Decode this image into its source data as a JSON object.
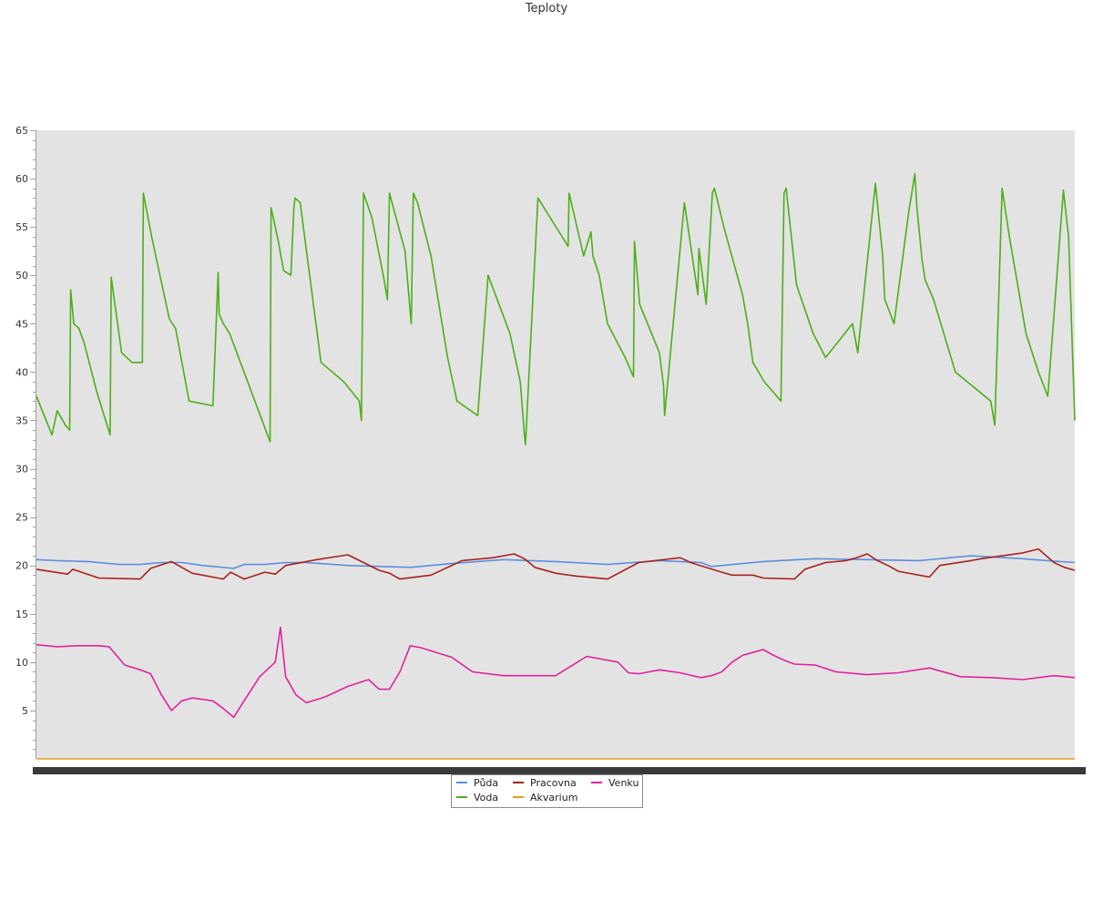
{
  "chart_data": {
    "type": "line",
    "title": "Teploty",
    "xlabel": "",
    "ylabel": "",
    "ylim": [
      0,
      65
    ],
    "yticks": [
      5,
      10,
      15,
      20,
      25,
      30,
      35,
      40,
      45,
      50,
      55,
      60,
      65
    ],
    "grid": false,
    "legend_position": "bottom-center",
    "series": [
      {
        "name": "Půda",
        "color": "#5b8ee0",
        "x": [
          0,
          2,
          5,
          8,
          10,
          12,
          14,
          16,
          19,
          20,
          22,
          24,
          26,
          30,
          36,
          40,
          45,
          50,
          55,
          60,
          64,
          65,
          70,
          75,
          80,
          85,
          90,
          95,
          96,
          100
        ],
        "values": [
          20.6,
          20.5,
          20.4,
          20.1,
          20.1,
          20.3,
          20.3,
          20.0,
          19.7,
          20.1,
          20.1,
          20.3,
          20.3,
          20.0,
          19.8,
          20.2,
          20.6,
          20.4,
          20.1,
          20.5,
          20.3,
          19.9,
          20.4,
          20.7,
          20.6,
          20.5,
          21.0,
          20.7,
          20.6,
          20.3
        ]
      },
      {
        "name": "Voda",
        "color": "#4caf17",
        "x": [
          0,
          1.5,
          2,
          2.8,
          3.2,
          3.3,
          3.6,
          4.1,
          4.6,
          5.8,
          7.1,
          7.2,
          8.2,
          9.2,
          10.2,
          10.3,
          11.1,
          12.8,
          13.4,
          14.7,
          17.0,
          17.5,
          17.6,
          18.0,
          18.6,
          19.3,
          22.5,
          22.6,
          23.0,
          23.3,
          23.8,
          24.5,
          24.8,
          24.9,
          25.4,
          27.4,
          29.6,
          31.1,
          31.3,
          31.5,
          32.3,
          33.4,
          33.8,
          34.0,
          35.5,
          36.1,
          36.3,
          36.7,
          38.0,
          39.6,
          40.5,
          42.5,
          43.5,
          45.6,
          46.6,
          47.0,
          47.1,
          48.3,
          51.2,
          51.3,
          52.7,
          53.4,
          53.6,
          54.2,
          55.0,
          56.7,
          57.5,
          57.6,
          58.1,
          60.0,
          60.4,
          60.5,
          62.4,
          63.7,
          63.8,
          64.5,
          65.1,
          65.3,
          66.2,
          68.0,
          68.5,
          69.0,
          70.1,
          71.7,
          72.0,
          72.2,
          73.2,
          74.8,
          76.0,
          78.6,
          79.1,
          80.8,
          81.5,
          81.7,
          82.6,
          84.0,
          84.6,
          84.8,
          85.3,
          85.6,
          86.4,
          88.5,
          91.9,
          92.3,
          93.0,
          93.7,
          94.5,
          95.3,
          96.5,
          97.4,
          98.9,
          99.4,
          100
        ],
        "values": [
          37.5,
          33.5,
          36.0,
          34.5,
          34.0,
          48.5,
          45.0,
          44.5,
          43.0,
          38.0,
          33.5,
          49.8,
          42.0,
          41.0,
          41.0,
          58.5,
          54.0,
          45.5,
          44.5,
          37.0,
          36.5,
          50.3,
          46.0,
          45.0,
          44.0,
          42.0,
          32.8,
          57.0,
          55.0,
          53.5,
          50.5,
          50.0,
          57.0,
          58.0,
          57.5,
          41.0,
          39.0,
          37.0,
          35.0,
          58.5,
          56.0,
          50.0,
          47.5,
          58.5,
          52.5,
          45.0,
          58.5,
          57.5,
          52.0,
          41.5,
          37.0,
          35.5,
          50.0,
          44.0,
          39.0,
          33.5,
          32.5,
          58.0,
          53.0,
          58.5,
          52.0,
          54.5,
          52.0,
          50.0,
          45.0,
          41.5,
          39.5,
          53.5,
          47.0,
          42.0,
          38.5,
          35.5,
          57.5,
          48.0,
          52.8,
          47.0,
          58.5,
          59.0,
          55.0,
          48.0,
          45.0,
          41.0,
          39.0,
          37.0,
          58.5,
          59.0,
          49.0,
          44.0,
          41.5,
          45.0,
          42.0,
          59.5,
          52.0,
          47.5,
          45.0,
          56.5,
          60.5,
          57.0,
          51.5,
          49.5,
          47.5,
          40.0,
          37.0,
          34.5,
          59.0,
          54.0,
          49.0,
          44.0,
          40.0,
          37.5,
          58.8,
          54.0,
          35.0
        ]
      },
      {
        "name": "Pracovna",
        "color": "#a8221d",
        "x": [
          0,
          3,
          3.5,
          6,
          10,
          11,
          13,
          15,
          18,
          18.7,
          20,
          22,
          23,
          24,
          27,
          30,
          33,
          34,
          35,
          38,
          41,
          44,
          46,
          47,
          48,
          50,
          52,
          55,
          58,
          62,
          63,
          66,
          67,
          69,
          70,
          73,
          74,
          76,
          78,
          79,
          80,
          81,
          82,
          83,
          86,
          87,
          90,
          91,
          93,
          95,
          96.5,
          98,
          99,
          100
        ],
        "values": [
          19.6,
          19.1,
          19.6,
          18.7,
          18.6,
          19.7,
          20.4,
          19.2,
          18.6,
          19.3,
          18.6,
          19.3,
          19.1,
          20.0,
          20.6,
          21.1,
          19.5,
          19.2,
          18.6,
          19.0,
          20.5,
          20.8,
          21.2,
          20.7,
          19.8,
          19.2,
          18.9,
          18.6,
          20.3,
          20.8,
          20.3,
          19.3,
          19.0,
          19.0,
          18.7,
          18.6,
          19.6,
          20.3,
          20.5,
          20.8,
          21.2,
          20.5,
          20.0,
          19.4,
          18.8,
          20.0,
          20.5,
          20.7,
          21.0,
          21.3,
          21.7,
          20.3,
          19.8,
          19.5
        ]
      },
      {
        "name": "Venku",
        "color": "#e0229e",
        "x": [
          0,
          2,
          4,
          6,
          7,
          8.5,
          10,
          11,
          12,
          13,
          14,
          15,
          17,
          18,
          19,
          20,
          21.5,
          23,
          23.5,
          24,
          25,
          26,
          27.5,
          28,
          30,
          32,
          33,
          34,
          35,
          36,
          37,
          40,
          42,
          45,
          50,
          53,
          56,
          57,
          58,
          59,
          60,
          62,
          64,
          65,
          66,
          67,
          68,
          69,
          70,
          71,
          72,
          73,
          75,
          77,
          80,
          83,
          86,
          89,
          92,
          95,
          98,
          100
        ],
        "values": [
          11.8,
          11.6,
          11.7,
          11.7,
          11.6,
          9.7,
          9.2,
          8.8,
          6.7,
          5.0,
          6.0,
          6.3,
          6.0,
          5.2,
          4.3,
          6.0,
          8.5,
          10.0,
          13.6,
          8.5,
          6.6,
          5.8,
          6.3,
          6.5,
          7.5,
          8.2,
          7.2,
          7.2,
          9.0,
          11.7,
          11.5,
          10.5,
          9.0,
          8.6,
          8.6,
          10.6,
          10.0,
          8.9,
          8.8,
          9.0,
          9.2,
          8.9,
          8.4,
          8.6,
          9.0,
          10.0,
          10.7,
          11.0,
          11.3,
          10.7,
          10.2,
          9.8,
          9.7,
          9.0,
          8.7,
          8.9,
          9.4,
          8.5,
          8.4,
          8.2,
          8.6,
          8.4
        ]
      },
      {
        "name": "Akvarium",
        "color": "#e0a020",
        "x": [
          0,
          100
        ],
        "values": [
          0,
          0
        ]
      }
    ]
  }
}
